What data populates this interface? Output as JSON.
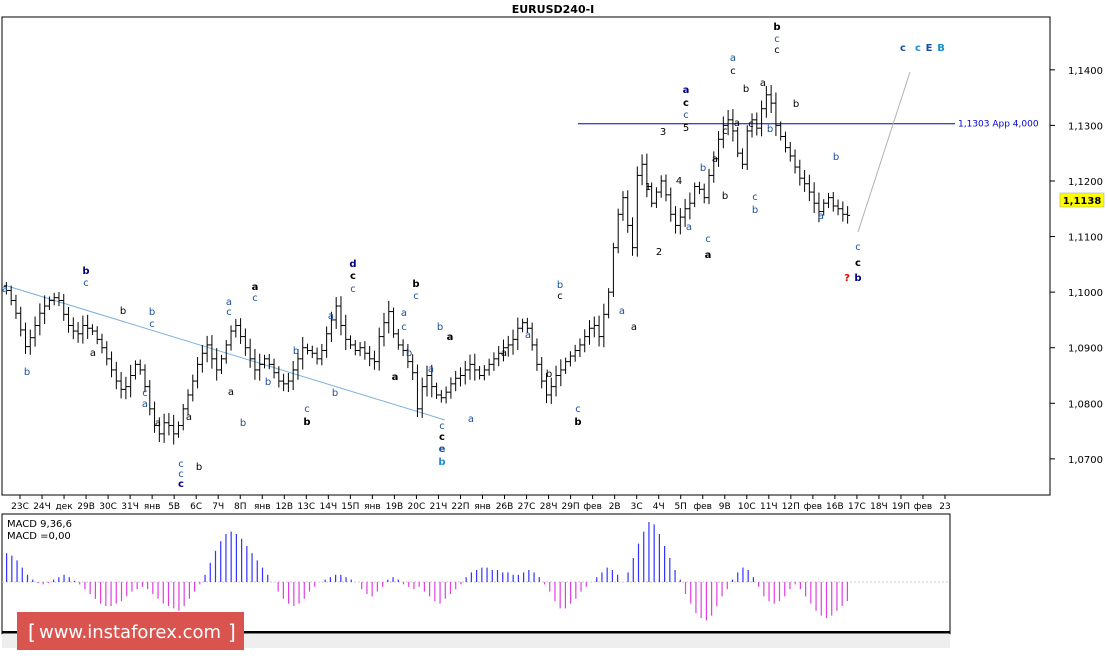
{
  "window_title": "EURUSD240-I",
  "chart_data": {
    "type": "ohlc",
    "symbol": "EURUSD",
    "timeframe": "H4",
    "y_axis": {
      "ticks": [
        "1,1400",
        "1,1300",
        "1,1200",
        "1,1100",
        "1,1000",
        "1,0900",
        "1,0800",
        "1,0700"
      ],
      "range": [
        1.0635,
        1.1495
      ],
      "current_price_label": "1,1138"
    },
    "x_axis": {
      "tick_labels": [
        "23С",
        "24Ч",
        "дек",
        "29В",
        "30С",
        "31Ч",
        "янв",
        "5В",
        "6С",
        "7Ч",
        "8П",
        "янв",
        "12В",
        "13С",
        "14Ч",
        "15П",
        "янв",
        "19В",
        "20С",
        "21Ч",
        "22П",
        "янв",
        "26В",
        "27С",
        "28Ч",
        "29П",
        "фев",
        "2В",
        "3С",
        "4Ч",
        "5П",
        "фев",
        "9В",
        "10С",
        "11Ч",
        "12П",
        "фев",
        "16В",
        "17С",
        "18Ч",
        "19П",
        "фев",
        "23"
      ]
    },
    "closes": [
      1.1003,
      1.0985,
      1.0962,
      1.0932,
      1.0902,
      1.0918,
      1.094,
      1.0962,
      1.0975,
      1.0985,
      1.099,
      1.0985,
      1.096,
      1.094,
      1.093,
      1.0925,
      1.094,
      1.0935,
      1.093,
      1.0915,
      1.09,
      1.088,
      1.086,
      1.084,
      1.0825,
      1.083,
      1.085,
      1.087,
      1.086,
      1.083,
      1.079,
      1.076,
      1.0745,
      1.0765,
      1.076,
      1.0745,
      1.076,
      1.079,
      1.0815,
      1.084,
      1.087,
      1.089,
      1.0905,
      1.088,
      1.086,
      1.088,
      1.0905,
      1.093,
      1.094,
      1.092,
      1.09,
      1.088,
      1.086,
      1.087,
      1.088,
      1.087,
      1.0855,
      1.084,
      1.0835,
      1.084,
      1.086,
      1.088,
      1.09,
      1.0895,
      1.089,
      1.088,
      1.0895,
      1.0925,
      1.095,
      1.0975,
      1.094,
      1.0915,
      1.0905,
      1.0895,
      1.09,
      1.089,
      1.088,
      1.0875,
      1.092,
      1.0945,
      1.0965,
      1.0925,
      1.0905,
      1.0895,
      1.0875,
      1.0855,
      1.079,
      1.083,
      1.085,
      1.083,
      1.0815,
      1.081,
      1.082,
      1.0835,
      1.0845,
      1.085,
      1.086,
      1.087,
      1.086,
      1.085,
      1.086,
      1.087,
      1.088,
      1.089,
      1.09,
      1.0905,
      1.0915,
      1.0935,
      1.0945,
      1.0935,
      1.0905,
      1.087,
      1.084,
      1.0815,
      1.083,
      1.085,
      1.086,
      1.0875,
      1.0885,
      1.0895,
      1.0905,
      1.092,
      1.0935,
      1.094,
      1.092,
      1.096,
      1.1,
      1.108,
      1.114,
      1.117,
      1.112,
      1.108,
      1.121,
      1.123,
      1.119,
      1.116,
      1.118,
      1.12,
      1.1175,
      1.114,
      1.112,
      1.1135,
      1.115,
      1.116,
      1.119,
      1.1185,
      1.117,
      1.121,
      1.124,
      1.1275,
      1.13,
      1.131,
      1.129,
      1.125,
      1.123,
      1.129,
      1.131,
      1.1295,
      1.133,
      1.1355,
      1.134,
      1.13,
      1.128,
      1.126,
      1.1245,
      1.1225,
      1.1205,
      1.1195,
      1.118,
      1.116,
      1.1145,
      1.116,
      1.117,
      1.1155,
      1.115,
      1.114,
      1.1138
    ],
    "horizontal_line": {
      "price": 1.1303,
      "label": "1,1303 App 4,000"
    },
    "wave_labels": [
      {
        "text": "b",
        "color": "#000080"
      },
      {
        "text": "c",
        "color": "#000000"
      },
      {
        "text": "c",
        "color": "#1a4f9c"
      },
      {
        "text": "a",
        "color": "#1a4f9c"
      },
      {
        "text": "b",
        "color": "#1a4f9c"
      },
      {
        "text": "d",
        "color": "#000080"
      },
      {
        "text": "e",
        "color": "#1a4f9c"
      },
      {
        "text": "E",
        "color": "#1a8fd0"
      },
      {
        "text": "B",
        "color": "#1a8fd0"
      },
      {
        "text": "?",
        "color": "#dd0000"
      },
      {
        "text": "1",
        "color": "#000000"
      },
      {
        "text": "2",
        "color": "#000000"
      },
      {
        "text": "3",
        "color": "#000000"
      },
      {
        "text": "4",
        "color": "#000000"
      },
      {
        "text": "5",
        "color": "#000000"
      }
    ],
    "indicator": {
      "title": "MACD 9,36,6",
      "value_label": "MACD =0,00",
      "hist": [
        1.2,
        1.1,
        0.9,
        0.6,
        0.3,
        0.1,
        -0.05,
        -0.1,
        -0.05,
        0.1,
        0.2,
        0.3,
        0.2,
        0.05,
        -0.1,
        -0.3,
        -0.5,
        -0.7,
        -0.9,
        -1.0,
        -1.0,
        -0.9,
        -0.8,
        -0.6,
        -0.4,
        -0.3,
        -0.2,
        -0.3,
        -0.5,
        -0.7,
        -0.9,
        -1.0,
        -1.1,
        -1.2,
        -1.0,
        -0.7,
        -0.4,
        -0.1,
        0.3,
        0.8,
        1.3,
        1.7,
        2.0,
        2.1,
        2.0,
        1.8,
        1.5,
        1.2,
        0.9,
        0.6,
        0.3,
        0.0,
        -0.4,
        -0.7,
        -0.9,
        -1.0,
        -0.9,
        -0.7,
        -0.4,
        -0.2,
        0.0,
        0.1,
        0.2,
        0.3,
        0.3,
        0.2,
        0.1,
        0.0,
        -0.3,
        -0.5,
        -0.6,
        -0.4,
        -0.2,
        0.1,
        0.2,
        0.1,
        -0.1,
        -0.2,
        -0.3,
        -0.2,
        -0.4,
        -0.6,
        -0.8,
        -0.9,
        -0.7,
        -0.5,
        -0.3,
        -0.1,
        0.2,
        0.4,
        0.5,
        0.6,
        0.6,
        0.5,
        0.5,
        0.4,
        0.4,
        0.3,
        0.3,
        0.4,
        0.5,
        0.4,
        0.2,
        -0.1,
        -0.4,
        -0.8,
        -1.1,
        -1.1,
        -0.9,
        -0.7,
        -0.4,
        -0.2,
        0.0,
        0.2,
        0.4,
        0.6,
        0.5,
        0.3,
        0.0,
        0.4,
        1.0,
        1.6,
        2.1,
        2.5,
        2.4,
        2.0,
        1.5,
        1.0,
        0.5,
        0.1,
        -0.5,
        -0.9,
        -1.3,
        -1.5,
        -1.6,
        -1.4,
        -1.0,
        -0.6,
        -0.3,
        0.1,
        0.4,
        0.6,
        0.5,
        0.2,
        -0.2,
        -0.6,
        -0.8,
        -0.9,
        -0.8,
        -0.6,
        -0.3,
        -0.1,
        -0.3,
        -0.6,
        -0.9,
        -1.2,
        -1.4,
        -1.5,
        -1.4,
        -1.2,
        -1.0,
        -0.8
      ]
    }
  },
  "watermark": {
    "text": "www.instaforex.com",
    "brackets_left": "[",
    "brackets_right": "]",
    "bg_color": "#d9534f"
  },
  "colors": {
    "bars": "#000000",
    "level_line": "#0000cc",
    "trend_line_down": "#7ab0e0",
    "trend_line_up": "#b0b0b0",
    "hist_pos": "#3333ff",
    "hist_neg": "#e040e0",
    "price_badge": "#ffff00"
  }
}
